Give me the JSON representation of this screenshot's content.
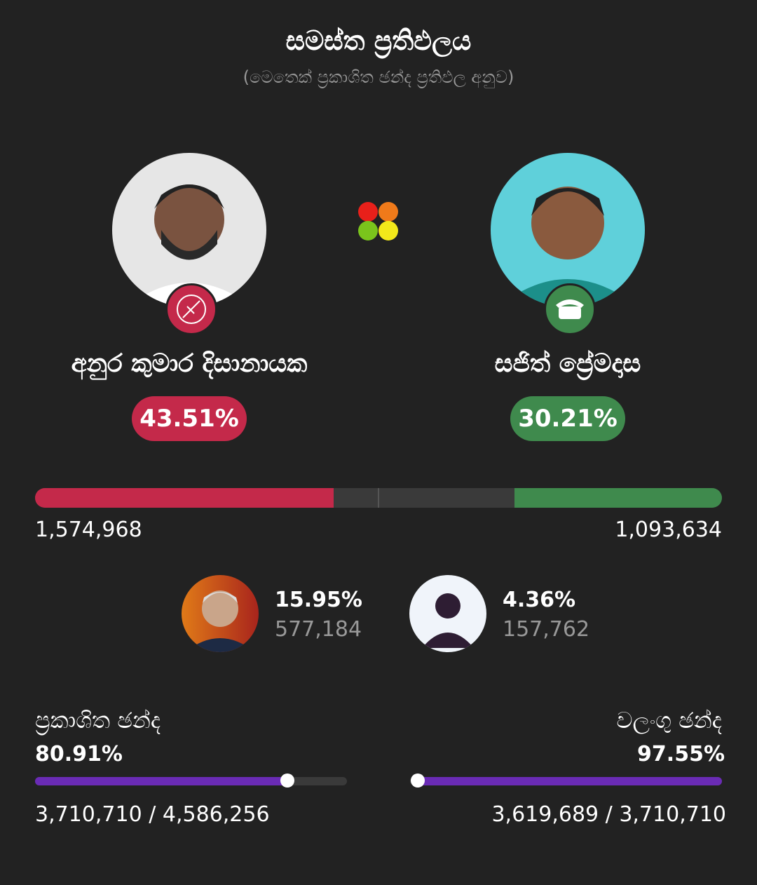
{
  "header": {
    "title": "සමස්ත ප්‍රතිඵලය",
    "subtitle": "(මෙතෙක් ප්‍රකාශිත ඡන්ද ප්‍රතිඵල අනුව)"
  },
  "leaders": [
    {
      "name": "අනුර කුමාර දිසානායක",
      "share": {
        "value": 43.51,
        "label": "43.51%"
      },
      "votes": "1,574,968"
    },
    {
      "name": "සජිත් ප්‍රේමදාස",
      "share": {
        "value": 30.21,
        "label": "30.21%"
      },
      "votes": "1,093,634"
    }
  ],
  "others": [
    {
      "share": "15.95%",
      "votes": "577,184"
    },
    {
      "share": "4.36%",
      "votes": "157,762"
    }
  ],
  "stats": [
    {
      "label": "ප්‍රකාශිත ඡන්ද",
      "rate": {
        "value": 80.91,
        "label": "80.91%"
      },
      "count": "3,710,710 / 4,586,256"
    },
    {
      "label": "වලංගු ඡන්ද",
      "rate": {
        "value": 97.55,
        "label": "97.55%"
      },
      "count": "3,619,689 / 3,710,710"
    }
  ]
}
